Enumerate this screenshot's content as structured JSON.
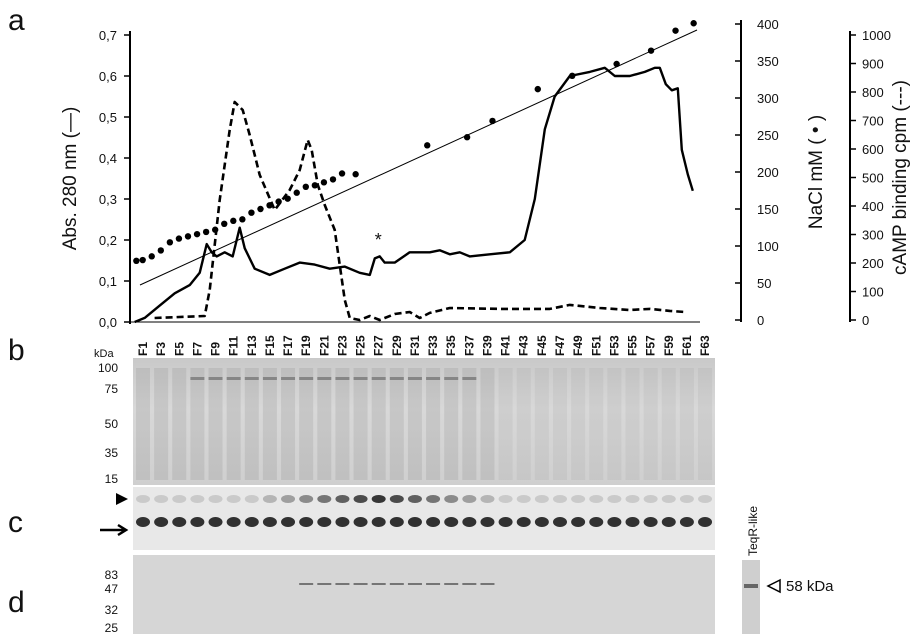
{
  "chart_data": {
    "type": "line",
    "xlim": [
      -0.4,
      62.5
    ],
    "ylim": [
      0,
      0.7
    ],
    "yticks": [
      {
        "value": 0,
        "label": "0,0"
      },
      {
        "value": 0.1,
        "label": "0,1"
      },
      {
        "value": 0.2,
        "label": "0,2"
      },
      {
        "value": 0.3,
        "label": "0,3"
      },
      {
        "value": 0.4,
        "label": "0,4"
      },
      {
        "value": 0.5,
        "label": "0,5"
      },
      {
        "value": 0.6,
        "label": "0,6"
      },
      {
        "value": 0.7,
        "label": "0,7"
      }
    ],
    "ylabel": "Abs. 280 nm (—)",
    "y2lim": [
      0,
      400
    ],
    "y2ticks": [
      0,
      50,
      100,
      150,
      200,
      250,
      300,
      350,
      400
    ],
    "y2label": "NaCl mM ( • )",
    "y3lim": [
      0,
      1000
    ],
    "y3ticks": [
      0,
      100,
      200,
      300,
      400,
      500,
      600,
      700,
      800,
      900,
      1000
    ],
    "y3label": "cAMP binding cpm (---)",
    "series": [
      {
        "style": "solid",
        "color": "#000000",
        "x": [
          0.12,
          1.22,
          2.88,
          4.53,
          6.19,
          7.29,
          8.06,
          8.62,
          9.17,
          10.05,
          10.93,
          11.71,
          12.26,
          13.36,
          15.02,
          16.67,
          18.33,
          19.98,
          21.64,
          23.3,
          24.95,
          26.06,
          26.61,
          27.16,
          27.71,
          28.81,
          30.47,
          32.68,
          33.78,
          34.89,
          35.99,
          37.09,
          39.3,
          41.51,
          43.16,
          44.27,
          45.37,
          46.47,
          48.13,
          50.34,
          51.99,
          53.1,
          54.75,
          56.41,
          57.51,
          58.06,
          58.73,
          59.39,
          60.05,
          60.49,
          61.15,
          61.71
        ],
        "values": [
          0,
          0.01,
          0.04,
          0.07,
          0.09,
          0.12,
          0.19,
          0.17,
          0.16,
          0.17,
          0.16,
          0.23,
          0.18,
          0.13,
          0.115,
          0.13,
          0.145,
          0.14,
          0.13,
          0.135,
          0.12,
          0.115,
          0.155,
          0.16,
          0.145,
          0.145,
          0.17,
          0.17,
          0.175,
          0.165,
          0.17,
          0.16,
          0.165,
          0.17,
          0.2,
          0.3,
          0.47,
          0.55,
          0.6,
          0.61,
          0.62,
          0.6,
          0.6,
          0.61,
          0.62,
          0.62,
          0.58,
          0.565,
          0.57,
          0.42,
          0.36,
          0.32
        ]
      },
      {
        "style": "dots",
        "color": "#000000",
        "axis": "y2",
        "x": [
          0.3,
          1,
          2,
          3,
          4,
          5,
          6,
          7,
          8,
          9,
          10,
          11,
          12,
          13,
          14,
          15,
          16,
          17,
          18,
          19,
          20,
          21,
          22,
          23,
          24.5,
          32.4,
          36.8,
          39.6,
          44.6,
          48.4,
          53.3,
          57.1,
          59.8,
          61.8
        ],
        "values": [
          80,
          81,
          86,
          94,
          105,
          110,
          113,
          116,
          119,
          122,
          130,
          134,
          136,
          145,
          150,
          155,
          160,
          164,
          172,
          180,
          182,
          186,
          190,
          198,
          197,
          236,
          247,
          269,
          312,
          330,
          346,
          364,
          391,
          401
        ]
      },
      {
        "style": "dashed",
        "color": "#000000",
        "axis": "y3",
        "x": [
          2.32,
          7.84,
          8.4,
          9.5,
          10.6,
          11.15,
          12.04,
          12.81,
          13.91,
          15.57,
          17.22,
          18.33,
          19.21,
          19.65,
          20.32,
          21.09,
          22.19,
          23.3,
          23.85,
          24.95,
          26.06,
          27.16,
          28.81,
          30.47,
          31.57,
          32.68,
          34.89,
          40.4,
          45.92,
          48.13,
          51.44,
          54.75,
          56.96,
          59.17,
          60.82
        ],
        "values": [
          7,
          14,
          105,
          421,
          667,
          765,
          737,
          649,
          509,
          386,
          456,
          526,
          632,
          596,
          474,
          404,
          316,
          70,
          7,
          0,
          14,
          0,
          21,
          28,
          7,
          25,
          42,
          39,
          39,
          53,
          42,
          35,
          39,
          32,
          28
        ]
      }
    ],
    "annotation": {
      "text": "*",
      "x": 27,
      "y": 0.2
    }
  },
  "panels": {
    "a": "a",
    "b": "b",
    "c": "c",
    "d": "d"
  },
  "gels": {
    "lanes": [
      "F1",
      "F3",
      "F5",
      "F7",
      "F9",
      "F11",
      "F13",
      "F15",
      "F17",
      "F19",
      "F21",
      "F23",
      "F25",
      "F27",
      "F29",
      "F31",
      "F33",
      "F35",
      "F37",
      "F39",
      "F41",
      "F43",
      "F45",
      "F47",
      "F49",
      "F51",
      "F53",
      "F55",
      "F57",
      "F59",
      "F61",
      "F63"
    ],
    "b_unit": "kDa",
    "b_markers": [
      100,
      75,
      50,
      35,
      15
    ],
    "d_markers": [
      83,
      47,
      32,
      25
    ],
    "d_band_label": "58 kDa",
    "d_lane_label": "TeqR-like"
  }
}
